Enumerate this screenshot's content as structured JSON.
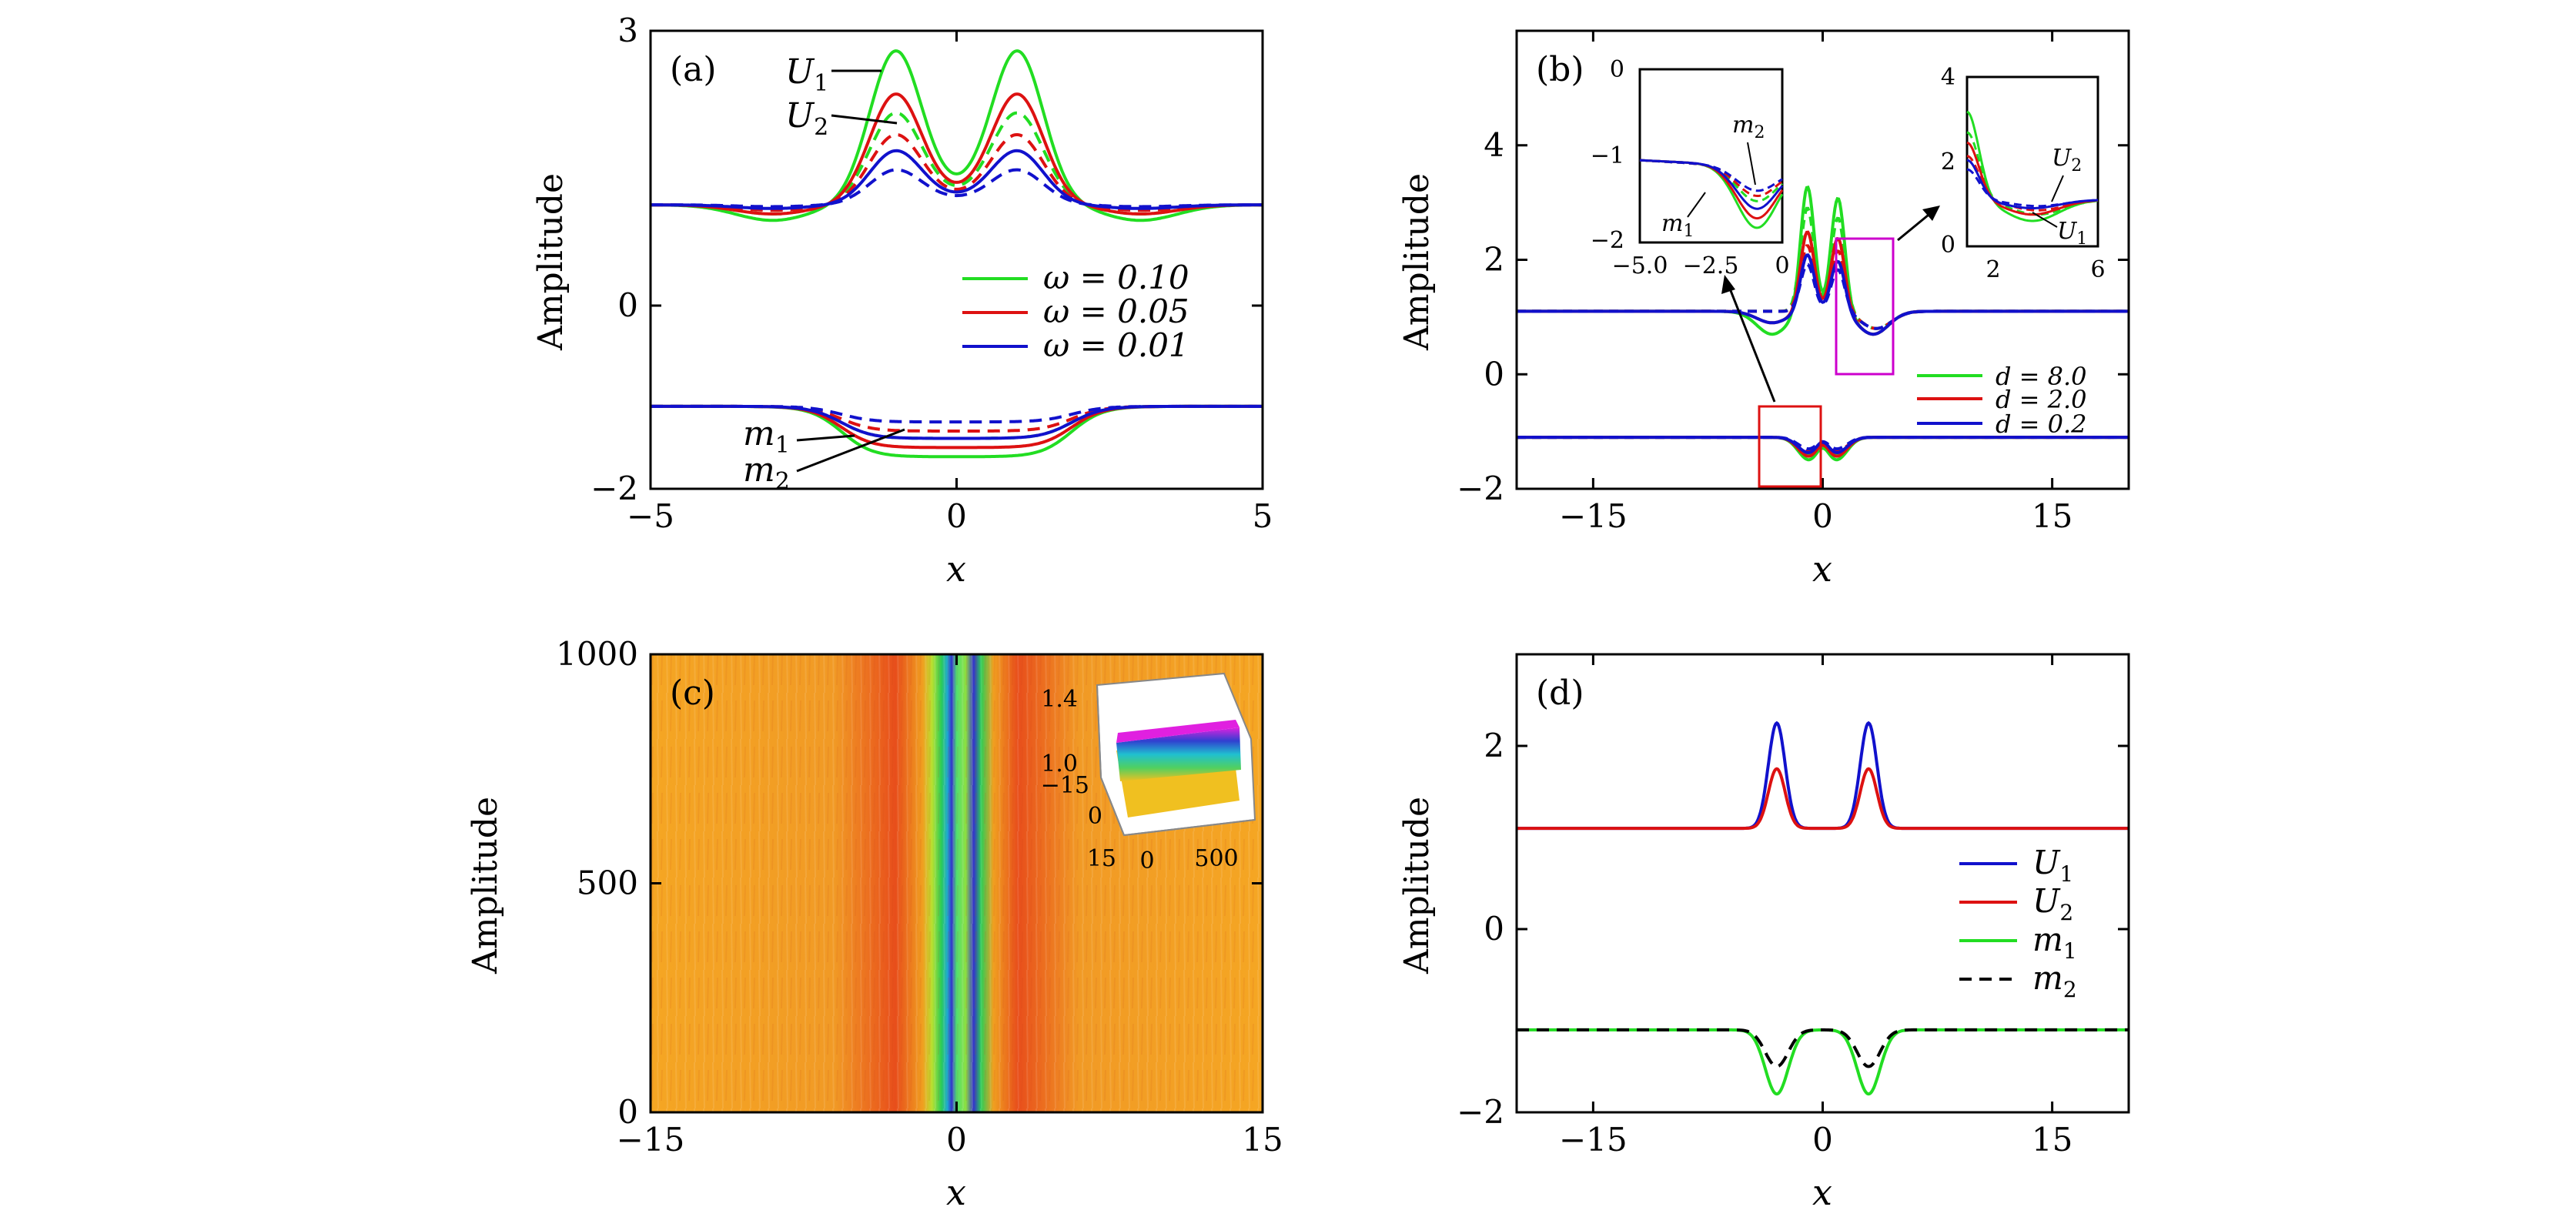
{
  "figure": {
    "panels": [
      "(a)",
      "(b)",
      "(c)",
      "(d)"
    ]
  },
  "colors": {
    "green": "#22dd22",
    "red": "#dd1111",
    "blue": "#1111cc",
    "black": "#000000",
    "magenta": "#cc00cc"
  },
  "chart_data": [
    {
      "panel": "(a)",
      "type": "line",
      "xlabel": "x",
      "ylabel": "Amplitude",
      "xlim": [
        -5,
        5
      ],
      "ylim": [
        -2,
        3
      ],
      "xticks": [
        "−5",
        "0",
        "5"
      ],
      "yticks": [
        "−2",
        "0",
        "3"
      ],
      "legend": {
        "placement": "center-right",
        "entries": [
          {
            "label": "ω = 0.10",
            "color": "#22dd22"
          },
          {
            "label": "ω = 0.05",
            "color": "#dd1111"
          },
          {
            "label": "ω = 0.01",
            "color": "#1111cc"
          }
        ]
      },
      "annotations": [
        "U1",
        "U2",
        "m1",
        "m2"
      ],
      "background": 1.1,
      "series": [
        {
          "component": "U1",
          "color": "#22dd22",
          "dash": false,
          "peak": 2.7,
          "center": 1.4,
          "dip": 0.93
        },
        {
          "component": "U2",
          "color": "#22dd22",
          "dash": true,
          "peak": 2.05,
          "center": 1.3,
          "dip": 1.0
        },
        {
          "component": "U1",
          "color": "#dd1111",
          "dash": false,
          "peak": 2.25,
          "center": 1.32,
          "dip": 1.0
        },
        {
          "component": "U2",
          "color": "#dd1111",
          "dash": true,
          "peak": 1.82,
          "center": 1.27,
          "dip": 1.04
        },
        {
          "component": "U1",
          "color": "#1111cc",
          "dash": false,
          "peak": 1.65,
          "center": 1.25,
          "dip": 1.06
        },
        {
          "component": "U2",
          "color": "#1111cc",
          "dash": true,
          "peak": 1.45,
          "center": 1.22,
          "dip": 1.08
        },
        {
          "component": "m1",
          "color": "#22dd22",
          "dash": false,
          "flat": -1.65,
          "rim": -1.6,
          "background": -1.1
        },
        {
          "component": "m2",
          "color": "#22dd22",
          "dash": true,
          "flat": -1.45,
          "rim": -1.42,
          "background": -1.1
        },
        {
          "component": "m1",
          "color": "#dd1111",
          "dash": false,
          "flat": -1.55,
          "rim": -1.52,
          "background": -1.1
        },
        {
          "component": "m2",
          "color": "#dd1111",
          "dash": true,
          "flat": -1.37,
          "rim": -1.35,
          "background": -1.1
        },
        {
          "component": "m1",
          "color": "#1111cc",
          "dash": false,
          "flat": -1.45,
          "rim": -1.42,
          "background": -1.1
        },
        {
          "component": "m2",
          "color": "#1111cc",
          "dash": true,
          "flat": -1.27,
          "rim": -1.26,
          "background": -1.1
        }
      ]
    },
    {
      "panel": "(b)",
      "type": "line",
      "xlabel": "x",
      "ylabel": "Amplitude",
      "xlim": [
        -20,
        20
      ],
      "ylim": [
        -2,
        6
      ],
      "xticks": [
        "−15",
        "0",
        "15"
      ],
      "yticks": [
        "−2",
        "0",
        "2",
        "4"
      ],
      "legend": {
        "placement": "lower-right",
        "entries": [
          {
            "label": "d = 8.0",
            "color": "#22dd22"
          },
          {
            "label": "d = 2.0",
            "color": "#dd1111"
          },
          {
            "label": "d = 0.2",
            "color": "#1111cc"
          }
        ]
      },
      "series": [
        {
          "color": "#22dd22",
          "U_peak": 3.3,
          "U_peak2": 3.1,
          "m_min": -1.75
        },
        {
          "color": "#dd1111",
          "U_peak": 2.5,
          "U_peak2": 2.4,
          "m_min": -1.65
        },
        {
          "color": "#1111cc",
          "U_peak": 2.1,
          "U_peak2": 2.0,
          "m_min": -1.55
        }
      ],
      "inset_left": {
        "xlim": [
          -5,
          0
        ],
        "ylim": [
          -2,
          0
        ],
        "xticks": [
          "−5.0",
          "−2.5",
          "0"
        ],
        "yticks": [
          "0",
          "−1",
          "−2"
        ],
        "annotations": [
          "m2",
          "m1"
        ]
      },
      "inset_right": {
        "xlim": [
          1,
          6
        ],
        "ylim": [
          0,
          4
        ],
        "xticks": [
          "2",
          "6"
        ],
        "yticks": [
          "4",
          "2",
          "0"
        ],
        "annotations": [
          "U2",
          "U1"
        ]
      }
    },
    {
      "panel": "(c)",
      "type": "heatmap",
      "xlabel": "x",
      "ylabel": "Amplitude",
      "xlim": [
        -15,
        15
      ],
      "ylim": [
        0,
        1000
      ],
      "xticks": [
        "−15",
        "0",
        "15"
      ],
      "yticks": [
        "0",
        "500",
        "1000"
      ],
      "inset_3d": {
        "zticks": [
          "1.4",
          "1.0"
        ],
        "xticks": [
          "−15",
          "0",
          "15"
        ],
        "tticks": [
          "0",
          "500"
        ]
      }
    },
    {
      "panel": "(d)",
      "type": "line",
      "xlabel": "x",
      "ylabel": "Amplitude",
      "xlim": [
        -20,
        20
      ],
      "ylim": [
        -2,
        3
      ],
      "xticks": [
        "−15",
        "0",
        "15"
      ],
      "yticks": [
        "−2",
        "0",
        "2"
      ],
      "legend": {
        "placement": "right",
        "entries": [
          {
            "label": "U1",
            "color": "#1111cc",
            "dash": false
          },
          {
            "label": "U2",
            "color": "#dd1111",
            "dash": false
          },
          {
            "label": "m1",
            "color": "#22dd22",
            "dash": false
          },
          {
            "label": "m2",
            "color": "#000000",
            "dash": true
          }
        ]
      },
      "background_U": 1.1,
      "background_m": -1.1,
      "peak_positions": [
        -3,
        3
      ],
      "series": [
        {
          "name": "U1",
          "peak": 2.25
        },
        {
          "name": "U2",
          "peak": 1.75
        },
        {
          "name": "m1",
          "min": -1.8
        },
        {
          "name": "m2",
          "min": -1.5
        }
      ]
    }
  ]
}
